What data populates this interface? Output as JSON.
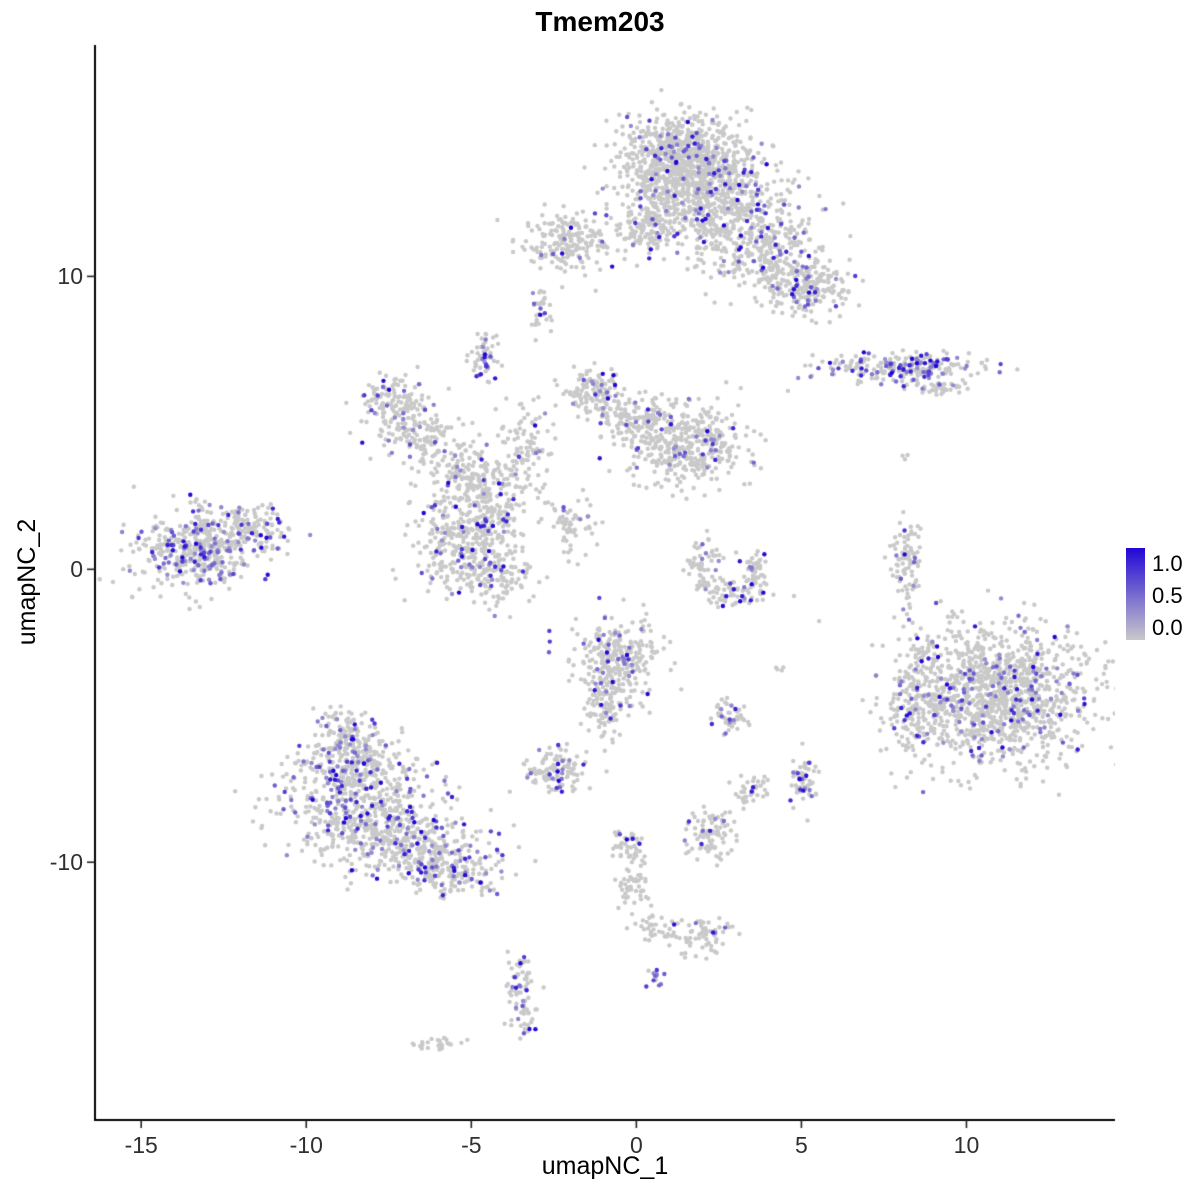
{
  "title": "Tmem203",
  "axes": {
    "x_label": "umapNC_1",
    "y_label": "umapNC_2",
    "x_ticks": [
      -15,
      -10,
      -5,
      0,
      5,
      10
    ],
    "y_ticks": [
      -10,
      0,
      10
    ],
    "x_range": [
      -16.4,
      14.5
    ],
    "y_range": [
      -18.8,
      17.9
    ]
  },
  "legend": {
    "labels": [
      "1.0",
      "0.5",
      "0.0"
    ],
    "values": [
      1.0,
      0.5,
      0.0
    ],
    "low_color": "#C9C9C9",
    "high_color": "#2107D6"
  },
  "chart_data": {
    "type": "scatter",
    "title": "Tmem203",
    "xlabel": "umapNC_1",
    "ylabel": "umapNC_2",
    "xlim": [
      -16.4,
      14.5
    ],
    "ylim": [
      -18.8,
      17.9
    ],
    "grid": false,
    "legend_position": "right",
    "color_scale": {
      "low": "#C9C9C9",
      "high": "#2107D6",
      "domain": [
        0.0,
        1.0
      ]
    },
    "point_radius_px": 2.2,
    "seed": 42,
    "cluster_fields": [
      "center_x",
      "center_y",
      "spread_x",
      "spread_y",
      "n_points",
      "expressing_fraction"
    ],
    "clusters": [
      [
        1.4,
        14.0,
        1.0,
        0.8,
        850,
        0.06
      ],
      [
        2.4,
        12.4,
        1.2,
        0.8,
        500,
        0.07
      ],
      [
        3.9,
        10.9,
        0.9,
        0.7,
        300,
        0.1
      ],
      [
        5.2,
        9.6,
        0.6,
        0.5,
        200,
        0.12
      ],
      [
        0.3,
        11.6,
        0.5,
        0.4,
        110,
        0.05
      ],
      [
        -2.1,
        11.2,
        0.8,
        0.5,
        200,
        0.06
      ],
      [
        -2.9,
        8.8,
        0.15,
        0.45,
        30,
        0.08
      ],
      [
        -4.6,
        7.3,
        0.2,
        0.5,
        55,
        0.3
      ],
      [
        8.2,
        6.9,
        1.2,
        0.25,
        230,
        0.3
      ],
      [
        9.1,
        6.2,
        0.5,
        0.15,
        40,
        0.1
      ],
      [
        -7.4,
        5.6,
        0.55,
        0.55,
        150,
        0.1
      ],
      [
        -6.4,
        4.5,
        0.5,
        0.5,
        100,
        0.08
      ],
      [
        -5.3,
        3.4,
        0.6,
        0.6,
        130,
        0.08
      ],
      [
        -4.3,
        2.4,
        0.6,
        0.7,
        160,
        0.1
      ],
      [
        -3.3,
        4.2,
        0.4,
        0.8,
        90,
        0.08
      ],
      [
        -1.3,
        6.0,
        0.5,
        0.45,
        130,
        0.1
      ],
      [
        0.0,
        5.1,
        0.5,
        0.4,
        90,
        0.08
      ],
      [
        1.5,
        4.3,
        1.0,
        0.7,
        420,
        0.08
      ],
      [
        -1.9,
        1.6,
        0.35,
        0.5,
        60,
        0.06
      ],
      [
        -13.3,
        0.7,
        0.9,
        0.7,
        450,
        0.22
      ],
      [
        -11.6,
        1.3,
        0.6,
        0.4,
        120,
        0.15
      ],
      [
        -5.3,
        0.9,
        0.8,
        0.8,
        320,
        0.1
      ],
      [
        -4.3,
        -0.2,
        0.5,
        0.5,
        110,
        0.1
      ],
      [
        2.0,
        0.2,
        0.25,
        0.45,
        60,
        0.1
      ],
      [
        2.8,
        -0.8,
        0.5,
        0.25,
        70,
        0.12
      ],
      [
        3.6,
        -0.1,
        0.2,
        0.4,
        50,
        0.1
      ],
      [
        8.2,
        0.3,
        0.22,
        0.8,
        90,
        0.1
      ],
      [
        10.9,
        -4.3,
        1.4,
        1.2,
        1250,
        0.1
      ],
      [
        8.6,
        -4.6,
        0.5,
        0.9,
        150,
        0.12
      ],
      [
        -0.6,
        -3.1,
        0.65,
        0.75,
        300,
        0.12
      ],
      [
        -0.9,
        -4.9,
        0.3,
        0.5,
        80,
        0.08
      ],
      [
        -2.4,
        -6.9,
        0.5,
        0.35,
        120,
        0.12
      ],
      [
        2.9,
        -5.0,
        0.3,
        0.3,
        50,
        0.1
      ],
      [
        -8.8,
        -5.5,
        0.45,
        0.45,
        90,
        0.2
      ],
      [
        -8.6,
        -6.6,
        0.8,
        0.6,
        220,
        0.2
      ],
      [
        -8.2,
        -8.0,
        1.3,
        0.8,
        430,
        0.18
      ],
      [
        -7.2,
        -9.3,
        1.2,
        0.6,
        300,
        0.15
      ],
      [
        -5.6,
        -10.2,
        0.8,
        0.45,
        200,
        0.12
      ],
      [
        3.5,
        -7.6,
        0.25,
        0.3,
        40,
        0.1
      ],
      [
        5.1,
        -7.2,
        0.25,
        0.45,
        60,
        0.2
      ],
      [
        2.3,
        -9.0,
        0.4,
        0.45,
        90,
        0.12
      ],
      [
        -0.3,
        -9.5,
        0.3,
        0.3,
        40,
        0.05
      ],
      [
        -0.1,
        -10.9,
        0.25,
        0.45,
        50,
        0.05
      ],
      [
        0.4,
        -12.2,
        0.3,
        0.3,
        30,
        0.05
      ],
      [
        1.9,
        -12.5,
        0.5,
        0.35,
        70,
        0.08
      ],
      [
        -3.5,
        -14.4,
        0.25,
        0.7,
        80,
        0.15
      ],
      [
        -6.0,
        -16.2,
        0.35,
        0.12,
        25,
        0.0
      ],
      [
        0.6,
        -13.9,
        0.15,
        0.15,
        12,
        0.7
      ],
      [
        8.1,
        3.9,
        0.1,
        0.1,
        3,
        0.0
      ],
      [
        4.3,
        -3.4,
        0.15,
        0.1,
        4,
        0.0
      ]
    ]
  }
}
